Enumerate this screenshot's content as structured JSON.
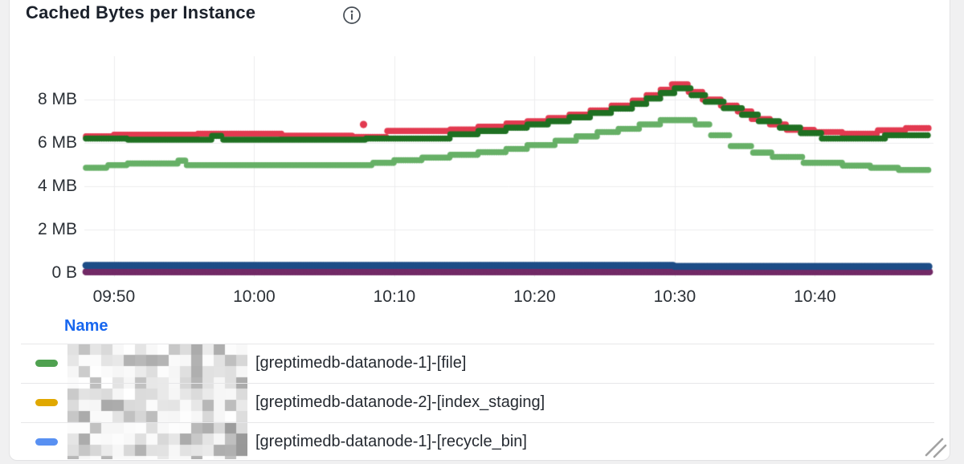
{
  "panel": {
    "title": "Cached Bytes per Instance",
    "info_icon": "info-icon"
  },
  "chart_data": {
    "type": "scatter",
    "title": "Cached Bytes per Instance",
    "grid": true,
    "x_axis": {
      "start_time": "09:48",
      "end_time": "10:48",
      "ticks": [
        "09:50",
        "10:00",
        "10:10",
        "10:20",
        "10:30",
        "10:40"
      ],
      "tick_minutes_from_start": [
        2,
        12,
        22,
        32,
        42,
        52
      ]
    },
    "y_axis": {
      "ticks": [
        "8 MB",
        "6 MB",
        "4 MB",
        "2 MB",
        "0 B"
      ],
      "tick_values_mb": [
        8,
        6,
        4,
        2,
        0
      ],
      "range_mb": [
        0,
        10
      ]
    },
    "series": [
      {
        "name": "series-red",
        "color": "#e23a50",
        "segments_min_min_mb": [
          [
            0,
            2,
            6.3
          ],
          [
            2,
            8,
            6.38
          ],
          [
            8,
            14,
            6.42
          ],
          [
            14,
            19,
            6.33
          ],
          [
            19,
            21.5,
            6.28
          ],
          [
            21.5,
            26,
            6.55
          ],
          [
            26,
            28,
            6.62
          ],
          [
            28,
            30,
            6.75
          ],
          [
            30,
            31.5,
            6.9
          ],
          [
            31.5,
            33,
            7.0
          ],
          [
            33,
            34.5,
            7.15
          ],
          [
            34.5,
            36,
            7.3
          ],
          [
            36,
            37.5,
            7.5
          ],
          [
            37.5,
            39,
            7.72
          ],
          [
            39,
            40,
            7.95
          ],
          [
            40,
            41,
            8.2
          ],
          [
            41,
            41.8,
            8.45
          ],
          [
            41.8,
            43,
            8.7
          ],
          [
            43,
            44,
            8.35
          ],
          [
            44,
            45.3,
            8.0
          ],
          [
            45.3,
            46.5,
            7.72
          ],
          [
            46.5,
            47.5,
            7.45
          ],
          [
            47.5,
            48.8,
            7.1
          ],
          [
            48.8,
            50,
            6.85
          ],
          [
            50,
            52,
            6.6
          ],
          [
            52,
            54,
            6.5
          ],
          [
            54,
            56.5,
            6.42
          ],
          [
            56.5,
            58.5,
            6.58
          ],
          [
            58.5,
            60.2,
            6.68
          ]
        ]
      },
      {
        "name": "series-dark-green",
        "color": "#1f7022",
        "segments_min_min_mb": [
          [
            0,
            3,
            6.2
          ],
          [
            3,
            9,
            6.15
          ],
          [
            9,
            9.8,
            6.32
          ],
          [
            9.8,
            20,
            6.15
          ],
          [
            20,
            26,
            6.2
          ],
          [
            26,
            28,
            6.4
          ],
          [
            28,
            30,
            6.55
          ],
          [
            30,
            31.5,
            6.7
          ],
          [
            31.5,
            33,
            6.85
          ],
          [
            33,
            34.5,
            7.0
          ],
          [
            34.5,
            36,
            7.18
          ],
          [
            36,
            37.5,
            7.38
          ],
          [
            37.5,
            39,
            7.58
          ],
          [
            39,
            40,
            7.8
          ],
          [
            40,
            41,
            8.05
          ],
          [
            41,
            42,
            8.3
          ],
          [
            42,
            43.2,
            8.52
          ],
          [
            43.2,
            44.2,
            8.2
          ],
          [
            44.2,
            45.5,
            7.9
          ],
          [
            45.5,
            46.8,
            7.6
          ],
          [
            46.8,
            48,
            7.3
          ],
          [
            48,
            49.5,
            7.0
          ],
          [
            49.5,
            51,
            6.7
          ],
          [
            51,
            52.5,
            6.45
          ],
          [
            52.5,
            57,
            6.2
          ],
          [
            57,
            60.2,
            6.35
          ]
        ]
      },
      {
        "name": "series-light-green",
        "color": "#67b067",
        "segments_min_min_mb": [
          [
            0,
            1.6,
            4.85
          ],
          [
            1.6,
            3,
            4.97
          ],
          [
            3,
            6.6,
            5.05
          ],
          [
            6.6,
            7.2,
            5.18
          ],
          [
            7.2,
            20.5,
            4.97
          ],
          [
            20.5,
            22,
            5.08
          ],
          [
            22,
            24,
            5.2
          ],
          [
            24,
            26,
            5.32
          ],
          [
            26,
            28,
            5.45
          ],
          [
            28,
            30,
            5.57
          ],
          [
            30,
            31.5,
            5.72
          ],
          [
            31.5,
            33.5,
            5.9
          ],
          [
            33.5,
            35,
            6.1
          ],
          [
            35,
            36.5,
            6.3
          ],
          [
            36.5,
            38,
            6.5
          ],
          [
            38,
            39.5,
            6.65
          ],
          [
            39.5,
            41,
            6.85
          ],
          [
            41,
            43.5,
            7.05
          ],
          [
            43.5,
            44.6,
            6.85
          ],
          [
            44.6,
            46,
            6.35
          ],
          [
            46,
            47.6,
            5.85
          ],
          [
            47.6,
            49,
            5.55
          ],
          [
            49,
            51.2,
            5.35
          ],
          [
            51.2,
            54,
            5.08
          ],
          [
            54,
            56,
            4.95
          ],
          [
            56,
            58,
            4.85
          ],
          [
            58,
            60.2,
            4.75
          ]
        ]
      },
      {
        "name": "series-purple",
        "color": "#722a66",
        "segments_min_min_mb": [
          [
            0,
            60.2,
            0.05
          ]
        ]
      },
      {
        "name": "series-navy",
        "color": "#1d4d87",
        "segments_min_min_mb": [
          [
            0,
            42,
            0.35
          ],
          [
            42,
            60.2,
            0.3
          ]
        ]
      }
    ],
    "outliers": [
      {
        "series": "series-red",
        "minute": 19.8,
        "value_mb": 6.85
      }
    ]
  },
  "legend": {
    "header": "Name",
    "rows": [
      {
        "color": "#4fa150",
        "label": "[greptimedb-datanode-1]-[file]"
      },
      {
        "color": "#e0a800",
        "label": "[greptimedb-datanode-2]-[index_staging]"
      },
      {
        "color": "#5890f2",
        "label": "[greptimedb-datanode-1]-[recycle_bin]"
      }
    ]
  },
  "colors": {
    "grid": "#ededee",
    "card_border": "#e2e2e4",
    "background": "#f0f0f1",
    "header_blue": "#1766ef"
  }
}
